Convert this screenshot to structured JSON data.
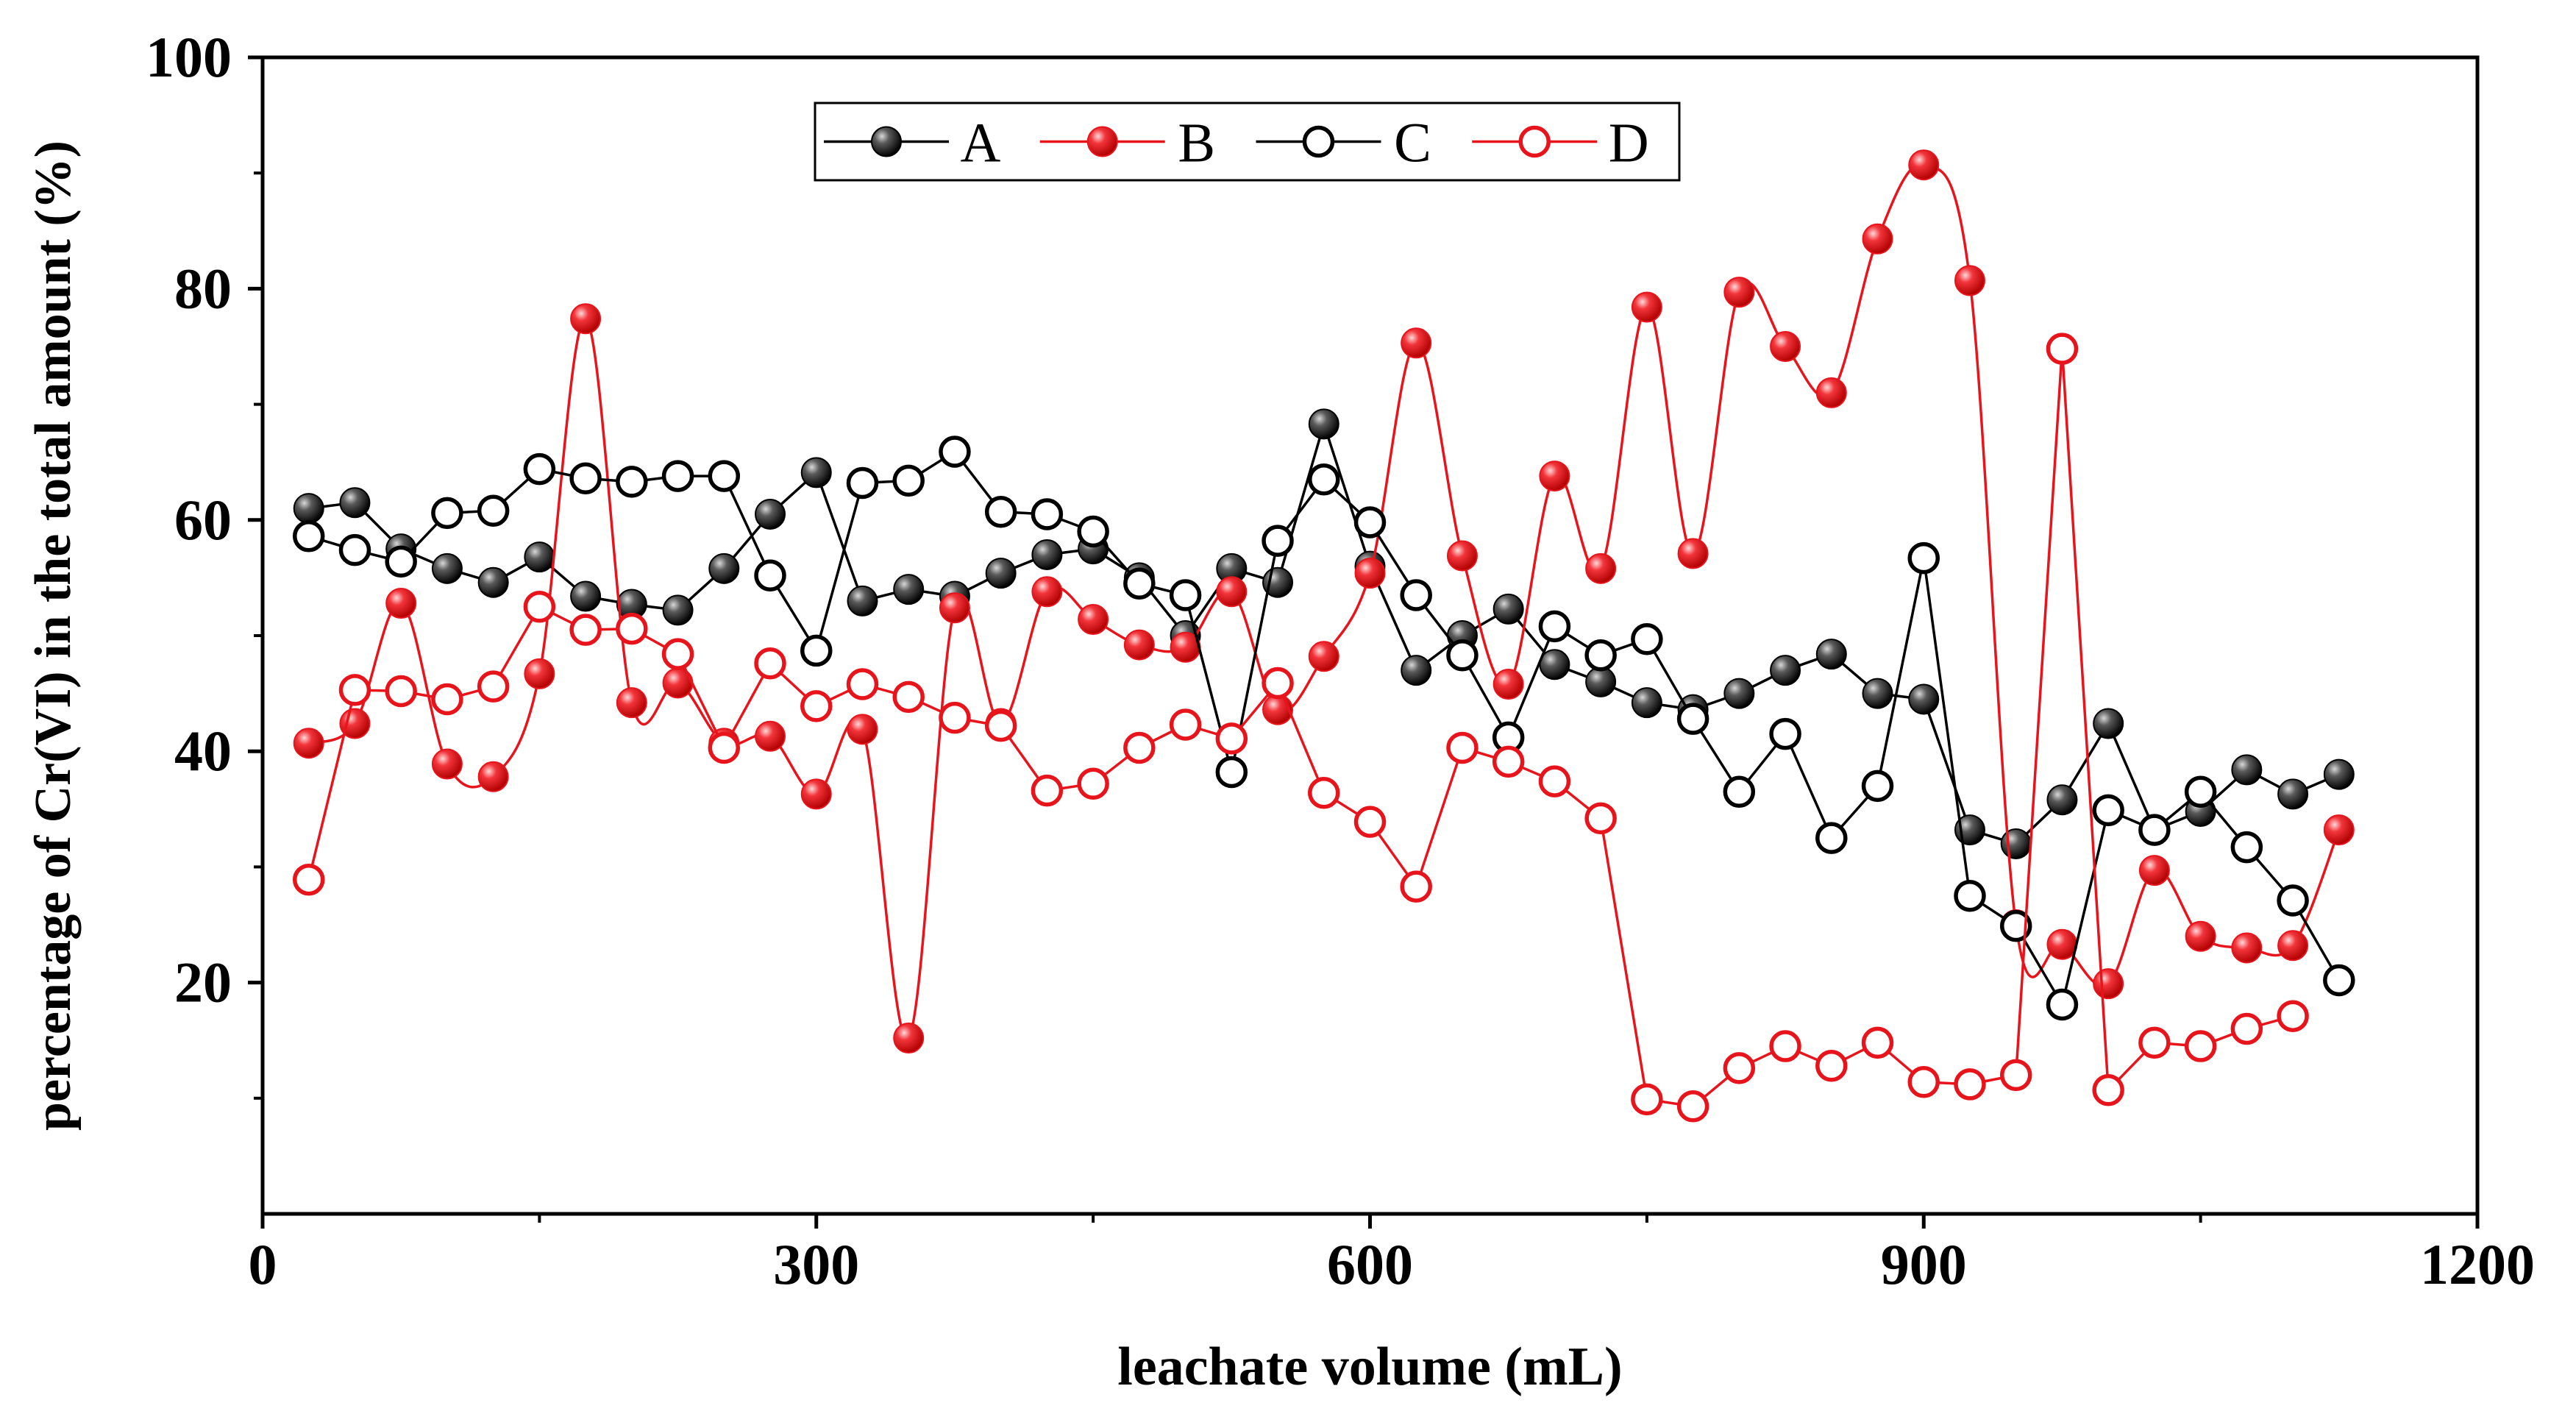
{
  "chart_data": {
    "type": "line",
    "title": "",
    "xlabel": "leachate volume (mL)",
    "ylabel": "percentage of Cr(VI) in the total amount (%)",
    "xlim": [
      0,
      1200
    ],
    "ylim": [
      0,
      100
    ],
    "xticks": [
      0,
      300,
      600,
      900,
      1200
    ],
    "yticks": [
      20,
      40,
      60,
      80,
      100
    ],
    "x": [
      25,
      50,
      75,
      100,
      125,
      150,
      175,
      200,
      225,
      250,
      275,
      300,
      325,
      350,
      375,
      400,
      425,
      450,
      475,
      500,
      525,
      550,
      575,
      600,
      625,
      650,
      675,
      700,
      725,
      750,
      775,
      800,
      825,
      850,
      875,
      900,
      925,
      950,
      975,
      1000,
      1025,
      1050,
      1075,
      1100,
      1125
    ],
    "legend_position": "top-center",
    "series": [
      {
        "name": "A",
        "color": "#000000",
        "marker": "filled-sphere",
        "smooth": false,
        "values": [
          61.0,
          61.5,
          57.5,
          55.8,
          54.6,
          56.8,
          53.4,
          52.7,
          52.2,
          55.8,
          60.5,
          64.1,
          53.0,
          54.0,
          53.4,
          55.4,
          57.0,
          57.5,
          55.0,
          50.0,
          55.8,
          54.6,
          68.3,
          56.0,
          47.0,
          50.0,
          52.3,
          47.5,
          46.0,
          44.2,
          43.6,
          45.0,
          47.0,
          48.4,
          45.0,
          44.5,
          33.2,
          32.0,
          35.8,
          42.4,
          33.2,
          34.8,
          38.4,
          36.3,
          38.0
        ]
      },
      {
        "name": "B",
        "color": "#e8141b",
        "marker": "filled-sphere",
        "smooth": true,
        "values": [
          40.7,
          42.4,
          52.8,
          38.9,
          37.8,
          46.7,
          77.4,
          44.2,
          45.9,
          40.7,
          41.3,
          36.3,
          41.9,
          15.2,
          52.4,
          42.4,
          53.8,
          51.4,
          49.2,
          49.0,
          53.8,
          43.6,
          48.2,
          55.4,
          75.3,
          56.9,
          45.8,
          63.8,
          55.8,
          78.4,
          57.1,
          79.7,
          75.0,
          71.0,
          84.3,
          90.7,
          80.7,
          25.0,
          23.3,
          19.9,
          29.7,
          24.0,
          23.0,
          23.2,
          33.2
        ]
      },
      {
        "name": "C",
        "color": "#000000",
        "marker": "open-circle",
        "smooth": false,
        "values": [
          58.6,
          57.4,
          56.4,
          60.6,
          60.8,
          64.4,
          63.6,
          63.3,
          63.8,
          63.8,
          55.2,
          48.7,
          63.2,
          63.4,
          65.9,
          60.7,
          60.5,
          59.0,
          54.5,
          53.5,
          38.2,
          58.2,
          63.5,
          59.8,
          53.5,
          48.3,
          41.2,
          50.8,
          48.3,
          49.7,
          42.8,
          36.5,
          41.5,
          32.5,
          37.0,
          56.7,
          27.5,
          24.9,
          18.1,
          34.9,
          33.2,
          36.5,
          31.7,
          27.1,
          20.2
        ]
      },
      {
        "name": "D",
        "color": "#e8141b",
        "marker": "open-circle",
        "smooth": false,
        "values": [
          28.9,
          45.3,
          45.2,
          44.5,
          45.6,
          52.5,
          50.5,
          50.6,
          48.4,
          40.3,
          47.6,
          43.9,
          45.8,
          44.7,
          42.9,
          42.2,
          36.6,
          37.2,
          40.3,
          42.3,
          41.1,
          45.9,
          36.4,
          33.9,
          28.3,
          40.3,
          39.1,
          37.4,
          34.2,
          9.9,
          9.3,
          12.6,
          14.5,
          12.8,
          14.8,
          11.4,
          11.2,
          12.0,
          74.8,
          10.7,
          14.8,
          14.5,
          16.0,
          17.1,
          null
        ]
      }
    ]
  }
}
